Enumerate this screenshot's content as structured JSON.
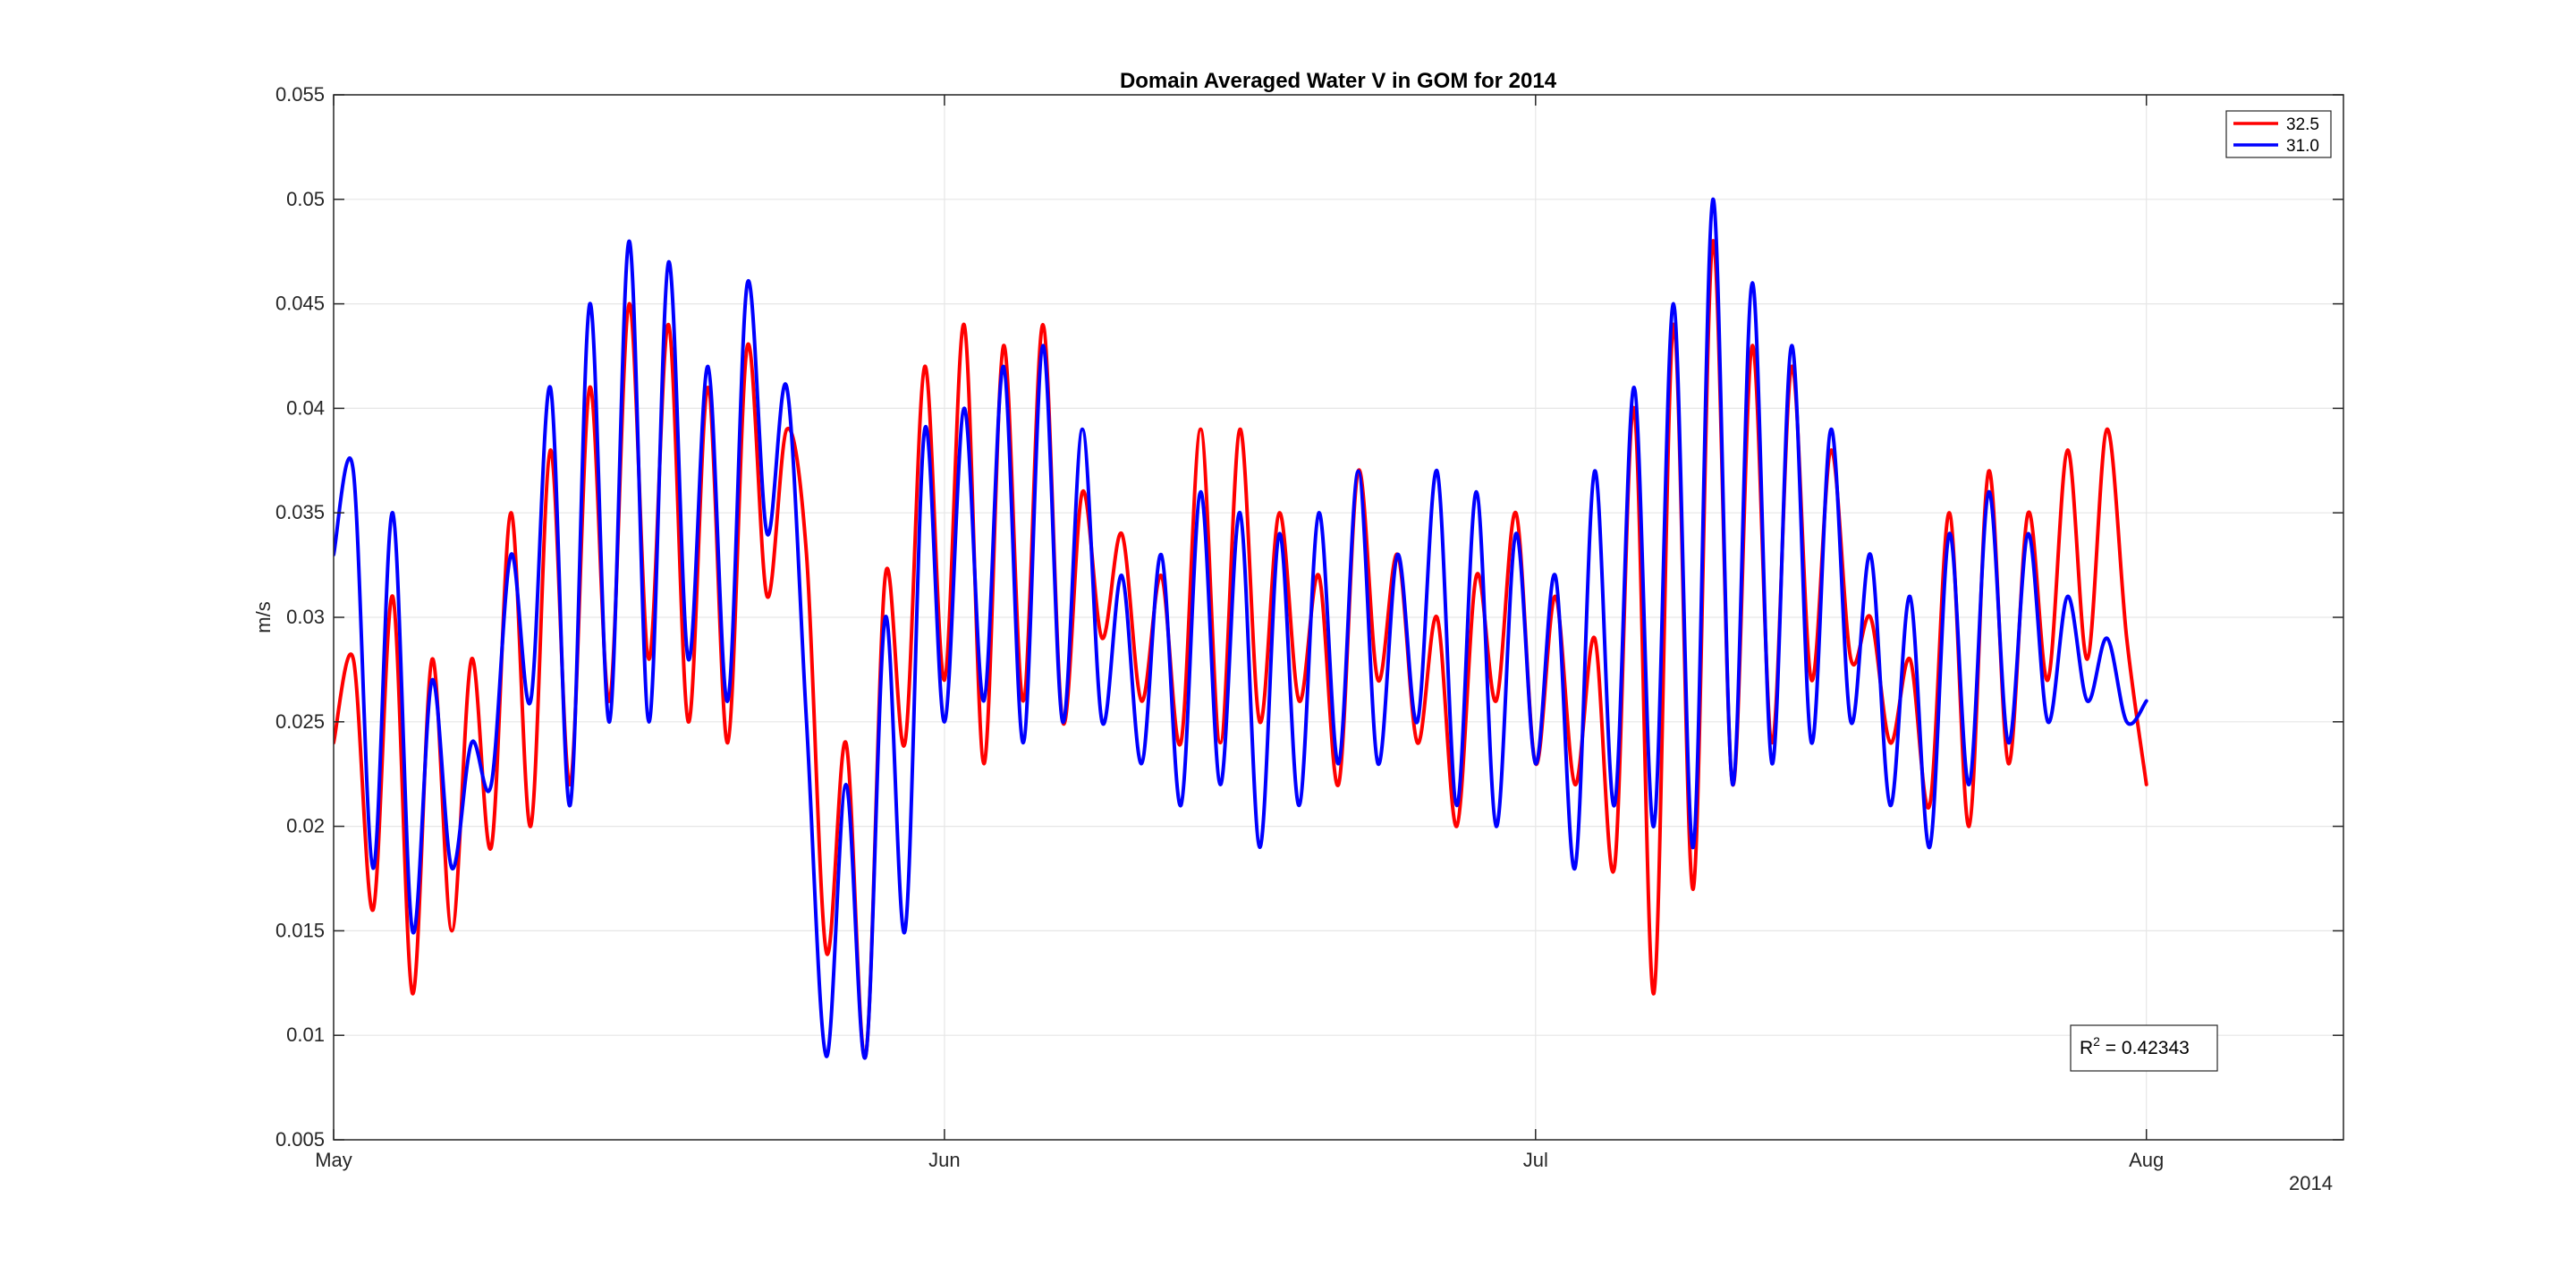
{
  "chart_data": {
    "type": "line",
    "title": "Domain Averaged Water V in GOM for 2014",
    "xlabel": "",
    "ylabel": "m/s",
    "x_secondary_label": "2014",
    "x_axis": {
      "type": "date",
      "range": [
        "2014-04-30",
        "2014-08-10"
      ],
      "ticks": [
        {
          "date": "2014-04-30",
          "label": "May"
        },
        {
          "date": "2014-05-31",
          "label": "Jun"
        },
        {
          "date": "2014-06-30",
          "label": "Jul"
        },
        {
          "date": "2014-07-31",
          "label": "Aug"
        }
      ]
    },
    "ylim": [
      0.005,
      0.055
    ],
    "yticks": [
      0.005,
      0.01,
      0.015,
      0.02,
      0.025,
      0.03,
      0.035,
      0.04,
      0.045,
      0.05,
      0.055
    ],
    "ytick_labels": [
      "0.005",
      "0.01",
      "0.015",
      "0.02",
      "0.025",
      "0.03",
      "0.035",
      "0.04",
      "0.045",
      "0.05",
      "0.055"
    ],
    "grid": true,
    "legend_location": "top-right",
    "annotation": {
      "label": "R",
      "superscript": "2",
      "text": " =  0.42343",
      "location": "bottom-right"
    },
    "series": [
      {
        "name": "32.5",
        "color": "#ff0000",
        "points": [
          [
            "2014-04-30",
            0.024
          ],
          [
            "2014-05-01",
            0.028
          ],
          [
            "2014-05-02",
            0.016
          ],
          [
            "2014-05-03",
            0.031
          ],
          [
            "2014-05-04",
            0.012
          ],
          [
            "2014-05-05",
            0.028
          ],
          [
            "2014-05-06",
            0.015
          ],
          [
            "2014-05-07",
            0.028
          ],
          [
            "2014-05-08",
            0.019
          ],
          [
            "2014-05-09",
            0.035
          ],
          [
            "2014-05-10",
            0.02
          ],
          [
            "2014-05-11",
            0.038
          ],
          [
            "2014-05-12",
            0.022
          ],
          [
            "2014-05-13",
            0.041
          ],
          [
            "2014-05-14",
            0.026
          ],
          [
            "2014-05-15",
            0.045
          ],
          [
            "2014-05-16",
            0.028
          ],
          [
            "2014-05-17",
            0.044
          ],
          [
            "2014-05-18",
            0.025
          ],
          [
            "2014-05-19",
            0.041
          ],
          [
            "2014-05-20",
            0.024
          ],
          [
            "2014-05-21",
            0.043
          ],
          [
            "2014-05-22",
            0.031
          ],
          [
            "2014-05-23",
            0.039
          ],
          [
            "2014-05-24",
            0.033
          ],
          [
            "2014-05-25",
            0.014
          ],
          [
            "2014-05-26",
            0.024
          ],
          [
            "2014-05-27",
            0.009
          ],
          [
            "2014-05-28",
            0.032
          ],
          [
            "2014-05-29",
            0.024
          ],
          [
            "2014-05-30",
            0.042
          ],
          [
            "2014-05-31",
            0.027
          ],
          [
            "2014-06-01",
            0.044
          ],
          [
            "2014-06-02",
            0.023
          ],
          [
            "2014-06-03",
            0.043
          ],
          [
            "2014-06-04",
            0.026
          ],
          [
            "2014-06-05",
            0.044
          ],
          [
            "2014-06-06",
            0.025
          ],
          [
            "2014-06-07",
            0.036
          ],
          [
            "2014-06-08",
            0.029
          ],
          [
            "2014-06-09",
            0.034
          ],
          [
            "2014-06-10",
            0.026
          ],
          [
            "2014-06-11",
            0.032
          ],
          [
            "2014-06-12",
            0.024
          ],
          [
            "2014-06-13",
            0.039
          ],
          [
            "2014-06-14",
            0.024
          ],
          [
            "2014-06-15",
            0.039
          ],
          [
            "2014-06-16",
            0.025
          ],
          [
            "2014-06-17",
            0.035
          ],
          [
            "2014-06-18",
            0.026
          ],
          [
            "2014-06-19",
            0.032
          ],
          [
            "2014-06-20",
            0.022
          ],
          [
            "2014-06-21",
            0.037
          ],
          [
            "2014-06-22",
            0.027
          ],
          [
            "2014-06-23",
            0.033
          ],
          [
            "2014-06-24",
            0.024
          ],
          [
            "2014-06-25",
            0.03
          ],
          [
            "2014-06-26",
            0.02
          ],
          [
            "2014-06-27",
            0.032
          ],
          [
            "2014-06-28",
            0.026
          ],
          [
            "2014-06-29",
            0.035
          ],
          [
            "2014-06-30",
            0.023
          ],
          [
            "2014-07-01",
            0.031
          ],
          [
            "2014-07-02",
            0.022
          ],
          [
            "2014-07-03",
            0.029
          ],
          [
            "2014-07-04",
            0.018
          ],
          [
            "2014-07-05",
            0.04
          ],
          [
            "2014-07-06",
            0.012
          ],
          [
            "2014-07-07",
            0.044
          ],
          [
            "2014-07-08",
            0.017
          ],
          [
            "2014-07-09",
            0.048
          ],
          [
            "2014-07-10",
            0.022
          ],
          [
            "2014-07-11",
            0.043
          ],
          [
            "2014-07-12",
            0.024
          ],
          [
            "2014-07-13",
            0.042
          ],
          [
            "2014-07-14",
            0.027
          ],
          [
            "2014-07-15",
            0.038
          ],
          [
            "2014-07-16",
            0.028
          ],
          [
            "2014-07-17",
            0.03
          ],
          [
            "2014-07-18",
            0.024
          ],
          [
            "2014-07-19",
            0.028
          ],
          [
            "2014-07-20",
            0.021
          ],
          [
            "2014-07-21",
            0.035
          ],
          [
            "2014-07-22",
            0.02
          ],
          [
            "2014-07-23",
            0.037
          ],
          [
            "2014-07-24",
            0.023
          ],
          [
            "2014-07-25",
            0.035
          ],
          [
            "2014-07-26",
            0.027
          ],
          [
            "2014-07-27",
            0.038
          ],
          [
            "2014-07-28",
            0.028
          ],
          [
            "2014-07-29",
            0.039
          ],
          [
            "2014-07-30",
            0.029
          ],
          [
            "2014-07-31",
            0.022
          ]
        ]
      },
      {
        "name": "31.0",
        "color": "#0000ff",
        "points": [
          [
            "2014-04-30",
            0.033
          ],
          [
            "2014-05-01",
            0.037
          ],
          [
            "2014-05-02",
            0.018
          ],
          [
            "2014-05-03",
            0.035
          ],
          [
            "2014-05-04",
            0.015
          ],
          [
            "2014-05-05",
            0.027
          ],
          [
            "2014-05-06",
            0.018
          ],
          [
            "2014-05-07",
            0.024
          ],
          [
            "2014-05-08",
            0.022
          ],
          [
            "2014-05-09",
            0.033
          ],
          [
            "2014-05-10",
            0.026
          ],
          [
            "2014-05-11",
            0.041
          ],
          [
            "2014-05-12",
            0.021
          ],
          [
            "2014-05-13",
            0.045
          ],
          [
            "2014-05-14",
            0.025
          ],
          [
            "2014-05-15",
            0.048
          ],
          [
            "2014-05-16",
            0.025
          ],
          [
            "2014-05-17",
            0.047
          ],
          [
            "2014-05-18",
            0.028
          ],
          [
            "2014-05-19",
            0.042
          ],
          [
            "2014-05-20",
            0.026
          ],
          [
            "2014-05-21",
            0.046
          ],
          [
            "2014-05-22",
            0.034
          ],
          [
            "2014-05-23",
            0.041
          ],
          [
            "2014-05-24",
            0.025
          ],
          [
            "2014-05-25",
            0.009
          ],
          [
            "2014-05-26",
            0.022
          ],
          [
            "2014-05-27",
            0.009
          ],
          [
            "2014-05-28",
            0.03
          ],
          [
            "2014-05-29",
            0.015
          ],
          [
            "2014-05-30",
            0.039
          ],
          [
            "2014-05-31",
            0.025
          ],
          [
            "2014-06-01",
            0.04
          ],
          [
            "2014-06-02",
            0.026
          ],
          [
            "2014-06-03",
            0.042
          ],
          [
            "2014-06-04",
            0.024
          ],
          [
            "2014-06-05",
            0.043
          ],
          [
            "2014-06-06",
            0.025
          ],
          [
            "2014-06-07",
            0.039
          ],
          [
            "2014-06-08",
            0.025
          ],
          [
            "2014-06-09",
            0.032
          ],
          [
            "2014-06-10",
            0.023
          ],
          [
            "2014-06-11",
            0.033
          ],
          [
            "2014-06-12",
            0.021
          ],
          [
            "2014-06-13",
            0.036
          ],
          [
            "2014-06-14",
            0.022
          ],
          [
            "2014-06-15",
            0.035
          ],
          [
            "2014-06-16",
            0.019
          ],
          [
            "2014-06-17",
            0.034
          ],
          [
            "2014-06-18",
            0.021
          ],
          [
            "2014-06-19",
            0.035
          ],
          [
            "2014-06-20",
            0.023
          ],
          [
            "2014-06-21",
            0.037
          ],
          [
            "2014-06-22",
            0.023
          ],
          [
            "2014-06-23",
            0.033
          ],
          [
            "2014-06-24",
            0.025
          ],
          [
            "2014-06-25",
            0.037
          ],
          [
            "2014-06-26",
            0.021
          ],
          [
            "2014-06-27",
            0.036
          ],
          [
            "2014-06-28",
            0.02
          ],
          [
            "2014-06-29",
            0.034
          ],
          [
            "2014-06-30",
            0.023
          ],
          [
            "2014-07-01",
            0.032
          ],
          [
            "2014-07-02",
            0.018
          ],
          [
            "2014-07-03",
            0.037
          ],
          [
            "2014-07-04",
            0.021
          ],
          [
            "2014-07-05",
            0.041
          ],
          [
            "2014-07-06",
            0.02
          ],
          [
            "2014-07-07",
            0.045
          ],
          [
            "2014-07-08",
            0.019
          ],
          [
            "2014-07-09",
            0.05
          ],
          [
            "2014-07-10",
            0.022
          ],
          [
            "2014-07-11",
            0.046
          ],
          [
            "2014-07-12",
            0.023
          ],
          [
            "2014-07-13",
            0.043
          ],
          [
            "2014-07-14",
            0.024
          ],
          [
            "2014-07-15",
            0.039
          ],
          [
            "2014-07-16",
            0.025
          ],
          [
            "2014-07-17",
            0.033
          ],
          [
            "2014-07-18",
            0.021
          ],
          [
            "2014-07-19",
            0.031
          ],
          [
            "2014-07-20",
            0.019
          ],
          [
            "2014-07-21",
            0.034
          ],
          [
            "2014-07-22",
            0.022
          ],
          [
            "2014-07-23",
            0.036
          ],
          [
            "2014-07-24",
            0.024
          ],
          [
            "2014-07-25",
            0.034
          ],
          [
            "2014-07-26",
            0.025
          ],
          [
            "2014-07-27",
            0.031
          ],
          [
            "2014-07-28",
            0.026
          ],
          [
            "2014-07-29",
            0.029
          ],
          [
            "2014-07-30",
            0.025
          ],
          [
            "2014-07-31",
            0.026
          ]
        ]
      }
    ]
  }
}
